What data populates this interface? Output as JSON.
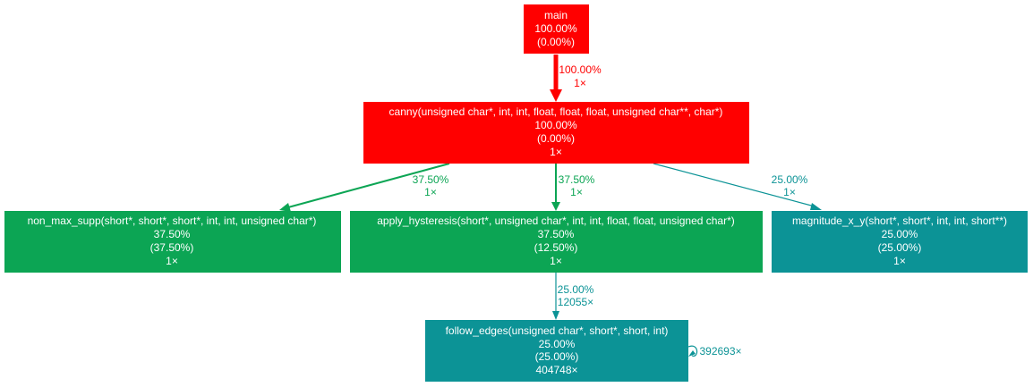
{
  "nodes": [
    {
      "id": "main",
      "lines": [
        "main",
        "100.00%",
        "(0.00%)"
      ],
      "color": "#ff0000"
    },
    {
      "id": "canny",
      "lines": [
        "canny(unsigned char*, int, int, float, float, float, unsigned char**, char*)",
        "100.00%",
        "(0.00%)",
        "1×"
      ],
      "color": "#ff0000"
    },
    {
      "id": "non_max_supp",
      "lines": [
        "non_max_supp(short*, short*, short*, int, int, unsigned char*)",
        "37.50%",
        "(37.50%)",
        "1×"
      ],
      "color": "#0ca554"
    },
    {
      "id": "apply_hysteresis",
      "lines": [
        "apply_hysteresis(short*, unsigned char*, int, int, float, float, unsigned char*)",
        "37.50%",
        "(12.50%)",
        "1×"
      ],
      "color": "#0ca554"
    },
    {
      "id": "magnitude_x_y",
      "lines": [
        "magnitude_x_y(short*, short*, int, int, short**)",
        "25.00%",
        "(25.00%)",
        "1×"
      ],
      "color": "#0c9396"
    },
    {
      "id": "follow_edges",
      "lines": [
        "follow_edges(unsigned char*, short*, short, int)",
        "25.00%",
        "(25.00%)",
        "404748×"
      ],
      "color": "#0c9396"
    }
  ],
  "edges": [
    {
      "id": "main-canny",
      "from": "main",
      "to": "canny",
      "labels": [
        "100.00%",
        "1×"
      ],
      "color": "#ff0000"
    },
    {
      "id": "canny-non_max_supp",
      "from": "canny",
      "to": "non_max_supp",
      "labels": [
        "37.50%",
        "1×"
      ],
      "color": "#0ca554"
    },
    {
      "id": "canny-apply_hysteresis",
      "from": "canny",
      "to": "apply_hysteresis",
      "labels": [
        "37.50%",
        "1×"
      ],
      "color": "#0ca554"
    },
    {
      "id": "canny-magnitude_x_y",
      "from": "canny",
      "to": "magnitude_x_y",
      "labels": [
        "25.00%",
        "1×"
      ],
      "color": "#0c9396"
    },
    {
      "id": "apply_hysteresis-follow_edges",
      "from": "apply_hysteresis",
      "to": "follow_edges",
      "labels": [
        "25.00%",
        "12055×"
      ],
      "color": "#0c9396"
    },
    {
      "id": "follow_edges-self",
      "from": "follow_edges",
      "to": "follow_edges",
      "labels": [
        "392693×"
      ],
      "color": "#0c9396"
    }
  ]
}
